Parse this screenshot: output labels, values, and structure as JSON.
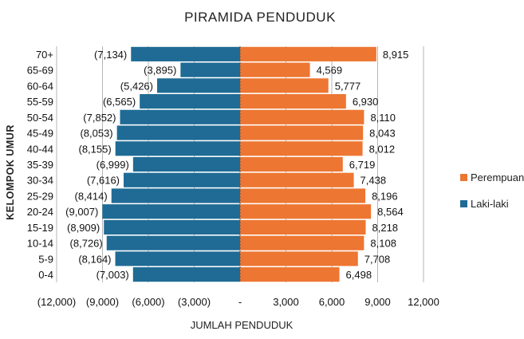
{
  "chart_data": {
    "type": "bar",
    "orientation": "horizontal",
    "title": "PIRAMIDA PENDUDUK",
    "xlabel": "JUMLAH PENDUDUK",
    "ylabel": "KELOMPOK UMUR",
    "xlim": [
      -12000,
      12000
    ],
    "x_ticks": [
      -12000,
      -9000,
      -6000,
      -3000,
      0,
      3000,
      6000,
      9000,
      12000
    ],
    "x_tick_labels": [
      "(12,000)",
      "(9,000)",
      "(6,000)",
      "(3,000)",
      "-",
      "3,000",
      "6,000",
      "9,000",
      "12,000"
    ],
    "grid": true,
    "legend_position": "right",
    "categories": [
      "70+",
      "65-69",
      "60-64",
      "55-59",
      "50-54",
      "45-49",
      "40-44",
      "35-39",
      "30-34",
      "25-29",
      "20-24",
      "15-19",
      "10-14",
      "5-9",
      "0-4"
    ],
    "series": [
      {
        "name": "Perempuan",
        "color": "#ED7632",
        "values": [
          8915,
          4569,
          5777,
          6930,
          8110,
          8043,
          8012,
          6719,
          7438,
          8196,
          8564,
          8218,
          8108,
          7708,
          6498
        ],
        "labels": [
          "8,915",
          "4,569",
          "5,777",
          "6,930",
          "8,110",
          "8,043",
          "8,012",
          "6,719",
          "7,438",
          "8,196",
          "8,564",
          "8,218",
          "8,108",
          "7,708",
          "6,498"
        ]
      },
      {
        "name": "Laki-laki",
        "color": "#1F6B95",
        "values": [
          -7134,
          -3895,
          -5426,
          -6565,
          -7852,
          -8053,
          -8155,
          -6999,
          -7616,
          -8414,
          -9007,
          -8909,
          -8726,
          -8164,
          -7003
        ],
        "labels": [
          "(7,134)",
          "(3,895)",
          "(5,426)",
          "(6,565)",
          "(7,852)",
          "(8,053)",
          "(8,155)",
          "(6,999)",
          "(7,616)",
          "(8,414)",
          "(9,007)",
          "(8,909)",
          "(8,726)",
          "(8,164)",
          "(7,003)"
        ]
      }
    ]
  }
}
